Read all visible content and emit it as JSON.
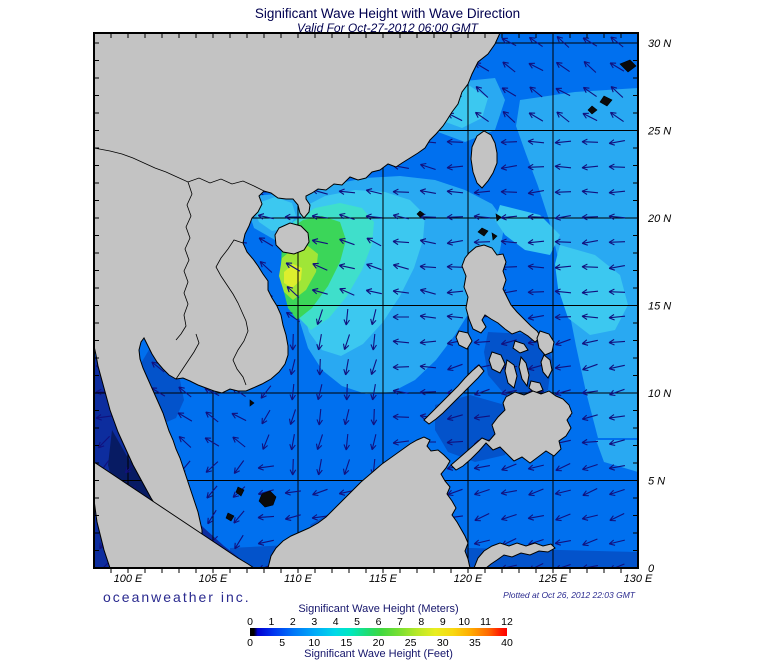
{
  "title": "Significant Wave Height with Wave Direction",
  "subtitle": "Valid For Oct-27-2012 06:00 GMT",
  "branding": "oceanweather inc.",
  "plotted_note": "Plotted at Oct 26, 2012 22:03 GMT",
  "axes": {
    "lon_labels": [
      "100 E",
      "105 E",
      "110 E",
      "115 E",
      "120 E",
      "125 E",
      "130 E"
    ],
    "lat_labels": [
      "30 N",
      "25 N",
      "20 N",
      "15 N",
      "10 N",
      "5 N",
      "0"
    ]
  },
  "legend": {
    "title_meters": "Significant Wave Height (Meters)",
    "title_feet": "Significant Wave Height (Feet)",
    "meters_ticks": [
      "0",
      "1",
      "2",
      "3",
      "4",
      "5",
      "6",
      "7",
      "8",
      "9",
      "10",
      "11",
      "12"
    ],
    "feet_ticks": [
      "0",
      "5",
      "10",
      "15",
      "20",
      "25",
      "30",
      "35",
      "40"
    ],
    "gradient_stops": [
      "#000000 0%",
      "#000000 1.5%",
      "#0000d0 3%",
      "#0033f0 9%",
      "#0077f8 17%",
      "#00aaf8 25%",
      "#00d8e8 33%",
      "#00e8c0 39%",
      "#20dd70 46%",
      "#40d840 51%",
      "#80e030 59%",
      "#b8e828 65%",
      "#e8ee20 72%",
      "#f8d810 79%",
      "#ffaa00 86%",
      "#ff6600 93%",
      "#ff2200 97%",
      "#ff0000 100%"
    ]
  },
  "colors": {
    "ocean_base": "#0070EF",
    "ocean_light": "#29A9F2",
    "ocean_cyan": "#3CC8F0",
    "ocean_teal": "#3FDFCB",
    "ocean_green": "#3BD659",
    "ocean_ygreen": "#9FE637",
    "ocean_yellow": "#DDEE2E",
    "ocean_dark": "#0353CB",
    "ocean_navy": "#0D2D9E",
    "ocean_deep": "#071B63",
    "ocean_darkest": "#040F47",
    "land": "#C3C3C3",
    "coast": "#000000",
    "island_dark": "#0a0a0a",
    "arrow": "#11117E",
    "grid": "#000000",
    "frame": "#000000",
    "axis_text": "#000000"
  }
}
